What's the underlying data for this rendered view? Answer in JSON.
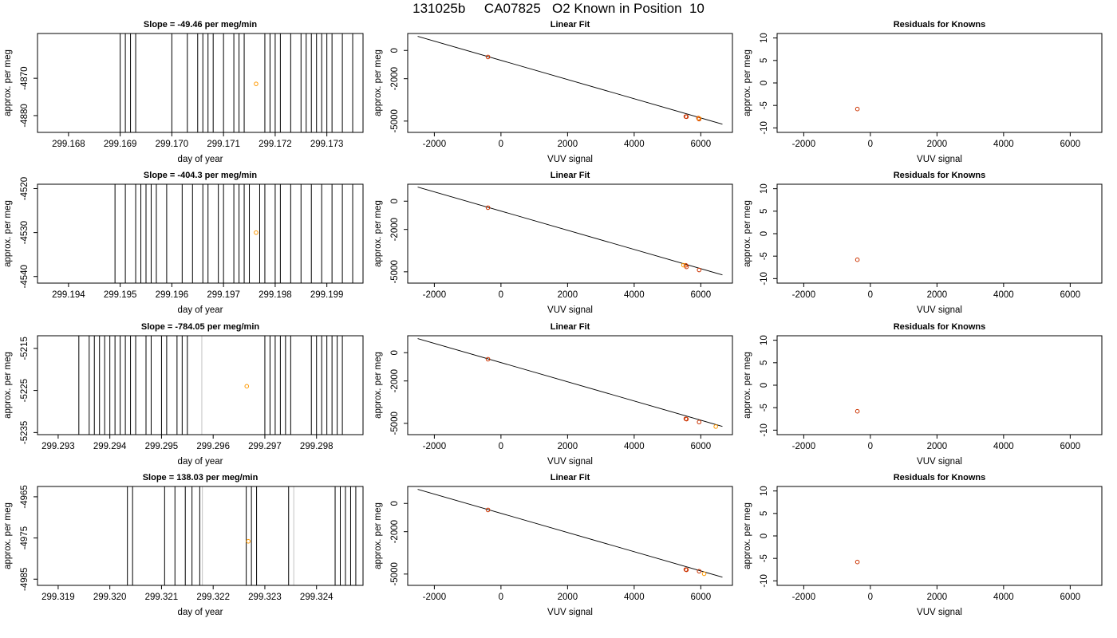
{
  "title": "131025b     CA07825   O2 Known in Position  10",
  "colors": {
    "axis": "#000000",
    "known_point": "#cc3300",
    "highlight_point": "#ff9900",
    "trace_line": "#000000",
    "flagged_line": "#cccccc"
  },
  "chart_data": [
    {
      "type": "line",
      "row": 0,
      "title": "Slope =  -49.46  per meg/min",
      "xlabel": "day of year",
      "ylabel": "approx. per meg",
      "xlim": [
        299.1674,
        299.1737
      ],
      "ylim": [
        -4884.5,
        -4858
      ],
      "xticks": [
        "299.168",
        "299.169",
        "299.170",
        "299.171",
        "299.172",
        "299.173"
      ],
      "yticks": [
        "-4870",
        "-4880"
      ],
      "trace_x": [
        299.169,
        299.1691,
        299.1692,
        299.1693,
        299.17,
        299.1703,
        299.1705,
        299.1706,
        299.1707,
        299.1708,
        299.171,
        299.1712,
        299.1713,
        299.1714,
        299.1718,
        299.1719,
        299.172,
        299.1721,
        299.1723,
        299.1725,
        299.1726,
        299.1727,
        299.1728,
        299.1729,
        299.173,
        299.1731,
        299.1733,
        299.1735
      ],
      "point": {
        "x": 299.17163,
        "y": -4871.5
      }
    },
    {
      "type": "line",
      "row": 1,
      "title": "Slope =  -404.3  per meg/min",
      "xlabel": "day of year",
      "ylabel": "approx. per meg",
      "xlim": [
        299.1934,
        299.1997
      ],
      "ylim": [
        -4541.5,
        -4519
      ],
      "xticks": [
        "299.194",
        "299.195",
        "299.196",
        "299.197",
        "299.198",
        "299.199"
      ],
      "yticks": [
        "-4520",
        "-4530",
        "-4540"
      ],
      "trace_x": [
        299.1949,
        299.1951,
        299.1953,
        299.1954,
        299.1955,
        299.1956,
        299.1957,
        299.1959,
        299.1962,
        299.1964,
        299.1966,
        299.1967,
        299.1969,
        299.197,
        299.1972,
        299.1973,
        299.1974,
        299.1975,
        299.1977,
        299.1978,
        299.198,
        299.1981,
        299.1983,
        299.1985,
        299.1987,
        299.1989,
        299.1991,
        299.1993,
        299.1995
      ],
      "point": {
        "x": 299.19763,
        "y": -4530.0
      }
    },
    {
      "type": "line",
      "row": 2,
      "title": "Slope =  -784.05  per meg/min",
      "xlabel": "day of year",
      "ylabel": "approx. per meg",
      "xlim": [
        299.2926,
        299.2989
      ],
      "ylim": [
        -5235.5,
        -5212
      ],
      "xticks": [
        "299.293",
        "299.294",
        "299.295",
        "299.296",
        "299.297",
        "299.298"
      ],
      "yticks": [
        "-5215",
        "-5225",
        "-5235"
      ],
      "trace_x": [
        299.2934,
        299.2936,
        299.2937,
        299.2938,
        299.2939,
        299.294,
        299.2941,
        299.2942,
        299.2943,
        299.2944,
        299.2945,
        299.2947,
        299.2948,
        299.295,
        299.2951,
        299.2953,
        299.2954,
        299.2955,
        299.297,
        299.2971,
        299.2972,
        299.2973,
        299.2974,
        299.2975,
        299.2979,
        299.298,
        299.2981,
        299.2982,
        299.2983,
        299.2984,
        299.2985
      ],
      "flagged_x": [
        299.29578
      ],
      "point": {
        "x": 299.29665,
        "y": -5224.0
      }
    },
    {
      "type": "line",
      "row": 3,
      "title": "Slope =  138.03  per meg/min",
      "xlabel": "day of year",
      "ylabel": "approx. per meg",
      "xlim": [
        299.3186,
        299.3249
      ],
      "ylim": [
        -4986.5,
        -4962.5
      ],
      "xticks": [
        "299.319",
        "299.320",
        "299.321",
        "299.322",
        "299.323",
        "299.324"
      ],
      "yticks": [
        "-4965",
        "-4975",
        "-4985"
      ],
      "trace_x": [
        299.32034,
        299.32044,
        299.32106,
        299.32126,
        299.32146,
        299.32159,
        299.32174,
        299.32264,
        299.32274,
        299.32284,
        299.32346,
        299.32436,
        299.32446,
        299.32456,
        299.32466,
        299.32476
      ],
      "flagged_x": [
        299.32179,
        299.32356
      ],
      "point": {
        "x": 299.32268,
        "y": -4975.8
      }
    },
    {
      "type": "scatter",
      "row": 0,
      "title": "Linear Fit",
      "xlabel": "VUV signal",
      "ylabel": "approx. per meg",
      "xlim": [
        -2800,
        6950
      ],
      "ylim": [
        -5800,
        1200
      ],
      "xticks": [
        -2000,
        0,
        2000,
        4000,
        6000
      ],
      "yticks": [
        0,
        -2000,
        -5000
      ],
      "fit_line": {
        "x": [
          -2500,
          6650
        ],
        "y": [
          1000,
          -5220
        ]
      },
      "known_points": [
        {
          "x": -390,
          "y": -460
        },
        {
          "x": 5550,
          "y": -4680
        },
        {
          "x": 5570,
          "y": -4690
        },
        {
          "x": 5930,
          "y": -4790
        },
        {
          "x": 5950,
          "y": -4860
        }
      ],
      "highlight_points": [
        {
          "x": 5950,
          "y": -4810
        }
      ]
    },
    {
      "type": "scatter",
      "row": 1,
      "title": "Linear Fit",
      "xlabel": "VUV signal",
      "ylabel": "approx. per meg",
      "xlim": [
        -2800,
        6950
      ],
      "ylim": [
        -5800,
        1200
      ],
      "xticks": [
        -2000,
        0,
        2000,
        4000,
        6000
      ],
      "yticks": [
        0,
        -2000,
        -5000
      ],
      "fit_line": {
        "x": [
          -2500,
          6650
        ],
        "y": [
          1000,
          -5220
        ]
      },
      "known_points": [
        {
          "x": -390,
          "y": -460
        },
        {
          "x": 5550,
          "y": -4540
        },
        {
          "x": 5570,
          "y": -4650
        },
        {
          "x": 5950,
          "y": -4870
        }
      ],
      "highlight_points": [
        {
          "x": 5480,
          "y": -4530
        }
      ]
    },
    {
      "type": "scatter",
      "row": 2,
      "title": "Linear Fit",
      "xlabel": "VUV signal",
      "ylabel": "approx. per meg",
      "xlim": [
        -2800,
        6950
      ],
      "ylim": [
        -5800,
        1200
      ],
      "xticks": [
        -2000,
        0,
        2000,
        4000,
        6000
      ],
      "yticks": [
        0,
        -2000,
        -5000
      ],
      "fit_line": {
        "x": [
          -2500,
          6650
        ],
        "y": [
          1000,
          -5220
        ]
      },
      "known_points": [
        {
          "x": -390,
          "y": -460
        },
        {
          "x": 5550,
          "y": -4680
        },
        {
          "x": 5570,
          "y": -4700
        },
        {
          "x": 5950,
          "y": -4910
        }
      ],
      "highlight_points": [
        {
          "x": 6450,
          "y": -5230
        }
      ]
    },
    {
      "type": "scatter",
      "row": 3,
      "title": "Linear Fit",
      "xlabel": "VUV signal",
      "ylabel": "approx. per meg",
      "xlim": [
        -2800,
        6950
      ],
      "ylim": [
        -5800,
        1200
      ],
      "xticks": [
        -2000,
        0,
        2000,
        4000,
        6000
      ],
      "yticks": [
        0,
        -2000,
        -5000
      ],
      "fit_line": {
        "x": [
          -2500,
          6650
        ],
        "y": [
          1000,
          -5220
        ]
      },
      "known_points": [
        {
          "x": -390,
          "y": -460
        },
        {
          "x": 5550,
          "y": -4680
        },
        {
          "x": 5570,
          "y": -4700
        },
        {
          "x": 5950,
          "y": -4800
        }
      ],
      "highlight_points": [
        {
          "x": 6100,
          "y": -4980
        }
      ]
    },
    {
      "type": "scatter",
      "row": 0,
      "title": "Residuals for Knowns",
      "xlabel": "VUV signal",
      "ylabel": "approx. per meg",
      "xlim": [
        -2800,
        6950
      ],
      "ylim": [
        -11,
        11
      ],
      "xticks": [
        -2000,
        0,
        2000,
        4000,
        6000
      ],
      "yticks": [
        10,
        5,
        0,
        -5,
        -10
      ],
      "residual_points": [
        {
          "x": -390,
          "y": -5.8
        }
      ]
    },
    {
      "type": "scatter",
      "row": 1,
      "title": "Residuals for Knowns",
      "xlabel": "VUV signal",
      "ylabel": "approx. per meg",
      "xlim": [
        -2800,
        6950
      ],
      "ylim": [
        -11,
        11
      ],
      "xticks": [
        -2000,
        0,
        2000,
        4000,
        6000
      ],
      "yticks": [
        10,
        5,
        0,
        -5,
        -10
      ],
      "residual_points": [
        {
          "x": -390,
          "y": -5.8
        }
      ]
    },
    {
      "type": "scatter",
      "row": 2,
      "title": "Residuals for Knowns",
      "xlabel": "VUV signal",
      "ylabel": "approx. per meg",
      "xlim": [
        -2800,
        6950
      ],
      "ylim": [
        -11,
        11
      ],
      "xticks": [
        -2000,
        0,
        2000,
        4000,
        6000
      ],
      "yticks": [
        10,
        5,
        0,
        -5,
        -10
      ],
      "residual_points": [
        {
          "x": -390,
          "y": -5.8
        }
      ]
    },
    {
      "type": "scatter",
      "row": 3,
      "title": "Residuals for Knowns",
      "xlabel": "VUV signal",
      "ylabel": "approx. per meg",
      "xlim": [
        -2800,
        6950
      ],
      "ylim": [
        -11,
        11
      ],
      "xticks": [
        -2000,
        0,
        2000,
        4000,
        6000
      ],
      "yticks": [
        10,
        5,
        0,
        -5,
        -10
      ],
      "residual_points": [
        {
          "x": -390,
          "y": -5.8
        }
      ]
    }
  ]
}
